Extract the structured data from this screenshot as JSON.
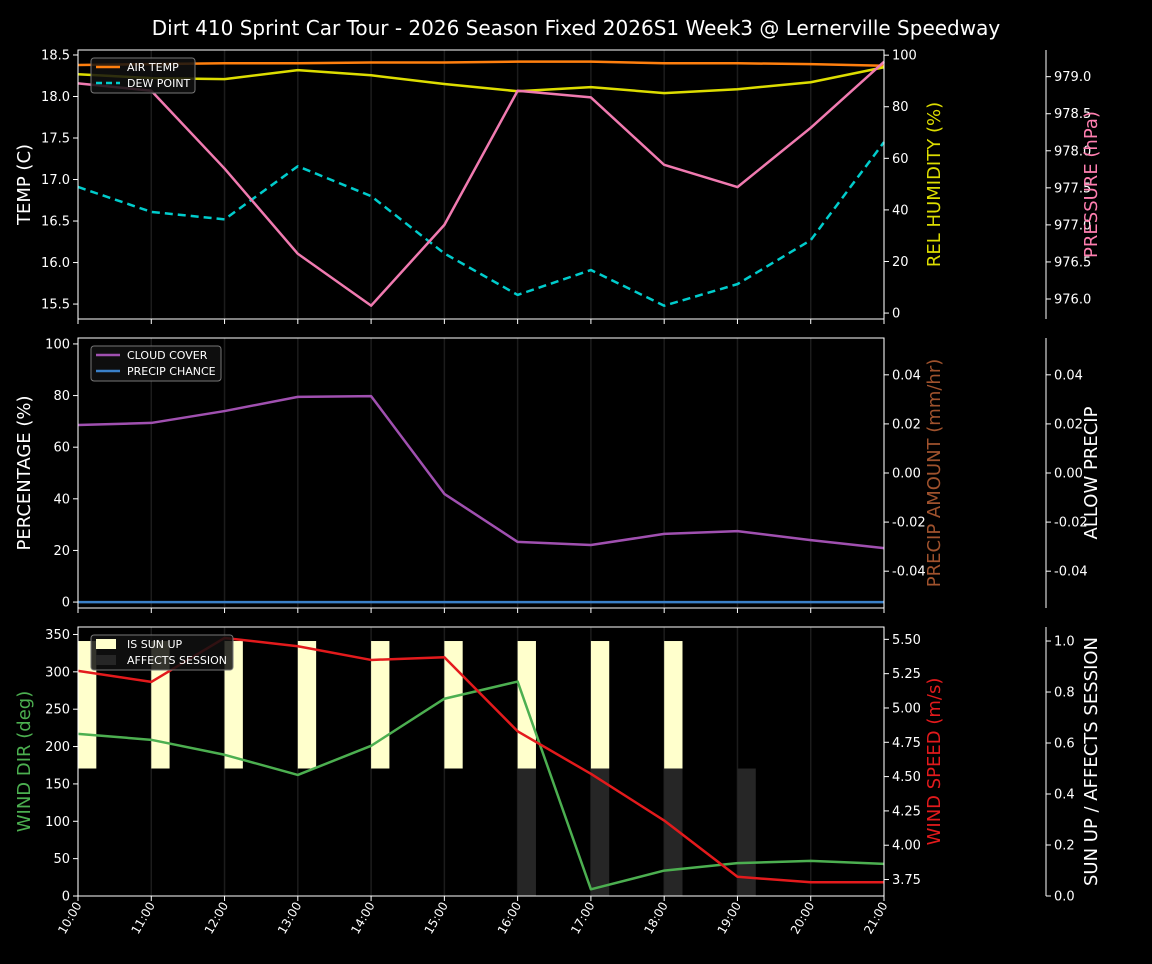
{
  "title": "Dirt 410 Sprint Car Tour - 2026 Season Fixed 2026S1 Week3 @ Lernerville Speedway",
  "x_ticks": [
    "10:00",
    "11:00",
    "12:00",
    "13:00",
    "14:00",
    "15:00",
    "16:00",
    "17:00",
    "18:00",
    "19:00",
    "20:00",
    "21:00"
  ],
  "chart_data": [
    {
      "type": "line",
      "x": [
        "10:00",
        "11:00",
        "12:00",
        "13:00",
        "14:00",
        "15:00",
        "16:00",
        "17:00",
        "18:00",
        "19:00",
        "20:00",
        "21:00"
      ],
      "axes": {
        "left": {
          "label": "TEMP (C)",
          "color": "#ffffff",
          "ylim": [
            15.32,
            18.56
          ],
          "ticks": [
            "15.5",
            "16.0",
            "16.5",
            "17.0",
            "17.5",
            "18.0",
            "18.5"
          ]
        },
        "right": {
          "label": "REL HUMIDITY (%)",
          "color": "#dddd00",
          "ylim": [
            -2.3,
            102
          ],
          "ticks": [
            "0",
            "20",
            "40",
            "60",
            "80",
            "100"
          ]
        },
        "right2": {
          "label": "PRESSURE (hPa)",
          "color": "#ff7fb0",
          "ylim": [
            975.73,
            979.36
          ],
          "ticks": [
            "976.0",
            "976.5",
            "977.0",
            "977.5",
            "978.0",
            "978.5",
            "979.0"
          ]
        }
      },
      "legend": {
        "placement": "upper-left",
        "entries": [
          "AIR TEMP",
          "DEW POINT"
        ]
      },
      "grid": "vertical",
      "series": [
        {
          "name": "AIR TEMP",
          "axis": "left",
          "color": "#ff7f0e",
          "dash": false,
          "values": [
            18.38,
            18.39,
            18.4,
            18.4,
            18.41,
            18.41,
            18.42,
            18.42,
            18.4,
            18.4,
            18.39,
            18.37
          ]
        },
        {
          "name": "DEW POINT",
          "axis": "left",
          "color": "#00cccc",
          "dash": true,
          "values": [
            16.91,
            16.61,
            16.52,
            17.16,
            16.8,
            16.11,
            15.61,
            15.91,
            15.48,
            15.74,
            16.27,
            17.45
          ]
        },
        {
          "axis": "right",
          "color": "#dddd00",
          "dash": false,
          "values": [
            92.6,
            91.1,
            90.7,
            94.2,
            92.2,
            88.8,
            86.0,
            87.6,
            85.3,
            86.8,
            89.5,
            95.3
          ]
        },
        {
          "axis": "right2",
          "color": "#f07ab0",
          "dash": false,
          "values": [
            978.91,
            978.81,
            977.76,
            976.61,
            975.91,
            977.0,
            978.81,
            978.72,
            977.81,
            977.51,
            978.31,
            979.2
          ]
        }
      ]
    },
    {
      "type": "line",
      "x": [
        "10:00",
        "11:00",
        "12:00",
        "13:00",
        "14:00",
        "15:00",
        "16:00",
        "17:00",
        "18:00",
        "19:00",
        "20:00",
        "21:00"
      ],
      "axes": {
        "left": {
          "label": "PERCENTAGE (%)",
          "color": "#ffffff",
          "ylim": [
            -2.3,
            102.3
          ],
          "ticks": [
            "0",
            "20",
            "40",
            "60",
            "80",
            "100"
          ]
        },
        "right": {
          "label": "PRECIP AMOUNT (mm/hr)",
          "color": "#a0522d",
          "ylim": [
            -0.055,
            0.055
          ],
          "ticks": [
            "-0.04",
            "-0.02",
            "0.00",
            "0.02",
            "0.04"
          ]
        },
        "right2": {
          "label": "ALLOW PRECIP",
          "color": "#ffffff",
          "ylim": [
            -0.055,
            0.055
          ],
          "ticks": [
            "-0.04",
            "-0.02",
            "0.00",
            "0.02",
            "0.04"
          ]
        }
      },
      "legend": {
        "placement": "upper-left",
        "entries": [
          "CLOUD COVER",
          "PRECIP CHANCE"
        ]
      },
      "grid": "vertical",
      "series": [
        {
          "name": "CLOUD COVER",
          "axis": "left",
          "color": "#a050b0",
          "dash": false,
          "values": [
            68.6,
            69.4,
            74.0,
            79.5,
            79.8,
            41.9,
            23.3,
            22.1,
            26.4,
            27.5,
            24.0,
            20.9
          ]
        },
        {
          "name": "PRECIP CHANCE",
          "axis": "left",
          "color": "#3a80c8",
          "dash": false,
          "values": [
            0,
            0,
            0,
            0,
            0,
            0,
            0,
            0,
            0,
            0,
            0,
            0
          ]
        }
      ]
    },
    {
      "type": "line",
      "x": [
        "10:00",
        "11:00",
        "12:00",
        "13:00",
        "14:00",
        "15:00",
        "16:00",
        "17:00",
        "18:00",
        "19:00",
        "20:00",
        "21:00"
      ],
      "axes": {
        "left": {
          "label": "WIND DIR (deg)",
          "color": "#4caf50",
          "ylim": [
            0,
            360
          ],
          "ticks": [
            "0",
            "50",
            "100",
            "150",
            "200",
            "250",
            "300",
            "350"
          ]
        },
        "right": {
          "label": "WIND SPEED (m/s)",
          "color": "#e31a1c",
          "ylim": [
            3.63,
            5.59
          ],
          "ticks": [
            "3.75",
            "4.00",
            "4.25",
            "4.50",
            "4.75",
            "5.00",
            "5.25",
            "5.50"
          ]
        },
        "right2": {
          "label": "SUN UP / AFFECTS SESSION",
          "color": "#ffffff",
          "ylim": [
            0,
            1.055
          ],
          "ticks": [
            "0.0",
            "0.2",
            "0.4",
            "0.6",
            "0.8",
            "1.0"
          ]
        }
      },
      "legend": {
        "placement": "upper-left",
        "entries": [
          "IS SUN UP",
          "AFFECTS SESSION"
        ]
      },
      "grid": "vertical",
      "bars": [
        {
          "name": "IS SUN UP",
          "color": "#ffffcc",
          "values": [
            1,
            1,
            1,
            1,
            1,
            1,
            1,
            1,
            1,
            0,
            0,
            0
          ]
        },
        {
          "name": "AFFECTS SESSION",
          "color": "#262626",
          "values": [
            0,
            0,
            0,
            0,
            0,
            0,
            1,
            1,
            1,
            1,
            0,
            0
          ]
        }
      ],
      "series": [
        {
          "axis": "left",
          "color": "#4caf50",
          "dash": false,
          "values": [
            217,
            209,
            189,
            162,
            201,
            264,
            287,
            9,
            34,
            44,
            47,
            43
          ]
        },
        {
          "axis": "right",
          "color": "#e31a1c",
          "dash": false,
          "values": [
            5.27,
            5.19,
            5.51,
            5.45,
            5.35,
            5.37,
            4.83,
            4.52,
            4.18,
            3.77,
            3.73,
            3.73
          ]
        }
      ]
    }
  ]
}
